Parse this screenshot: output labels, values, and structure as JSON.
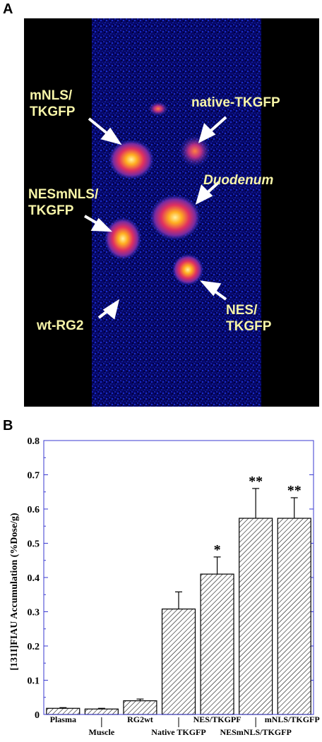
{
  "panel_a": {
    "letter": "A",
    "labels": {
      "mnls": "mNLS/\nTKGFP",
      "native": "native-TKGFP",
      "duodenum": "Duodenum",
      "nesmnls": "NESmNLS/\nTKGFP",
      "nes": "NES/\nTKGFP",
      "wt": "wt-RG2"
    }
  },
  "panel_b": {
    "letter": "B"
  },
  "chart_data": {
    "type": "bar",
    "ylabel": "[131I]FIAU Accumulation (%Dose/g)",
    "ylim": [
      0,
      0.8
    ],
    "yticks": [
      "0",
      "0.1",
      "0.2",
      "0.3",
      "0.4",
      "0.5",
      "0.6",
      "0.7",
      "0.8"
    ],
    "categories": [
      "Plasma",
      "Muscle",
      "RG2wt",
      "Native TKGFP",
      "NES/TKGPF",
      "NESmNLS/TKGFP",
      "mNLS/TKGFP"
    ],
    "values": [
      0.018,
      0.016,
      0.04,
      0.308,
      0.41,
      0.573,
      0.573
    ],
    "errors": [
      0.002,
      0.002,
      0.005,
      0.05,
      0.05,
      0.087,
      0.06
    ],
    "significance": [
      "",
      "",
      "",
      "",
      "*",
      "**",
      "**"
    ],
    "pattern": "diagonal-hatch",
    "grid": false,
    "legend": "none"
  }
}
